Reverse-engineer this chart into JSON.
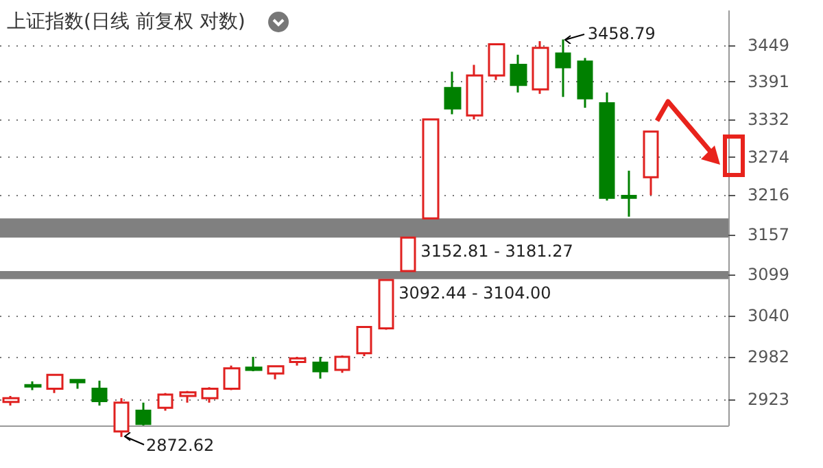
{
  "chart_data": {
    "type": "candlestick",
    "title": "上证指数(日线 前复权 对数)",
    "categories": [
      null,
      null,
      null,
      null,
      null,
      null,
      null,
      null,
      null,
      null,
      null,
      null,
      null,
      null,
      null,
      null,
      null,
      null,
      null,
      null,
      null,
      null,
      null,
      null,
      null,
      null,
      null,
      null,
      null,
      null,
      null,
      null,
      null
    ],
    "ohlc": [
      [
        2920,
        2928,
        2915,
        2925
      ],
      [
        2943,
        2948,
        2936,
        2941
      ],
      [
        2938,
        2957,
        2932,
        2957
      ],
      [
        2950,
        2951,
        2938,
        2947
      ],
      [
        2938,
        2949,
        2915,
        2921
      ],
      [
        2880,
        2925,
        2872.62,
        2919
      ],
      [
        2908,
        2919,
        2888,
        2890
      ],
      [
        2912,
        2932,
        2908,
        2930
      ],
      [
        2928,
        2935,
        2919,
        2933
      ],
      [
        2925,
        2940,
        2919,
        2938
      ],
      [
        2938,
        2970,
        2936,
        2966
      ],
      [
        2967,
        2982,
        2962,
        2964
      ],
      [
        2959,
        2970,
        2951,
        2969
      ],
      [
        2975,
        2982,
        2970,
        2980
      ],
      [
        2974,
        2982,
        2952,
        2962
      ],
      [
        2964,
        2984,
        2960,
        2982
      ],
      [
        2987,
        3024,
        2983,
        3024
      ],
      [
        3022,
        3092.44,
        3020,
        3091
      ],
      [
        3104,
        3152.81,
        3104,
        3152.81
      ],
      [
        3181.27,
        3332,
        3181.27,
        3332
      ],
      [
        3381,
        3407,
        3340,
        3349
      ],
      [
        3338,
        3418,
        3332,
        3401
      ],
      [
        3401,
        3451,
        3394,
        3451
      ],
      [
        3418,
        3434,
        3374,
        3386
      ],
      [
        3379,
        3456,
        3372,
        3445
      ],
      [
        3436,
        3458.79,
        3367,
        3414
      ],
      [
        3423,
        3429,
        3350,
        3365
      ],
      [
        3357,
        3374,
        3208,
        3212
      ],
      [
        3215,
        3253,
        3184,
        3212
      ],
      [
        3243,
        3313,
        3216,
        3313
      ],
      null,
      null,
      null
    ],
    "colors": [
      "#e0201f",
      "#008000",
      "#e0201f",
      "#008000",
      "#008000",
      "#e0201f",
      "#008000",
      "#e0201f",
      "#e0201f",
      "#e0201f",
      "#e0201f",
      "#008000",
      "#e0201f",
      "#e0201f",
      "#008000",
      "#e0201f",
      "#e0201f",
      "#e0201f",
      "#e0201f",
      "#e0201f",
      "#008000",
      "#e0201f",
      "#e0201f",
      "#008000",
      "#e0201f",
      "#008000",
      "#008000",
      "#008000",
      "#008000",
      "#e0201f",
      null,
      null,
      null
    ],
    "ylim": [
      2888,
      3505
    ],
    "log": true,
    "yticks": [
      2923,
      2982,
      3040,
      3099,
      3157,
      3216,
      3274,
      3332,
      3391,
      3449
    ],
    "grid": "y",
    "tick_labels": "y",
    "bands": [
      {
        "axis": "y",
        "from": 3152.81,
        "to": 3181.27,
        "label": "3152.81 - 3181.27",
        "color": "#808080"
      },
      {
        "axis": "y",
        "from": 3092.44,
        "to": 3104.0,
        "label": "3092.44 - 3104.00",
        "color": "#808080"
      }
    ],
    "annotations": [
      "3458.79",
      "2872.62"
    ]
  }
}
